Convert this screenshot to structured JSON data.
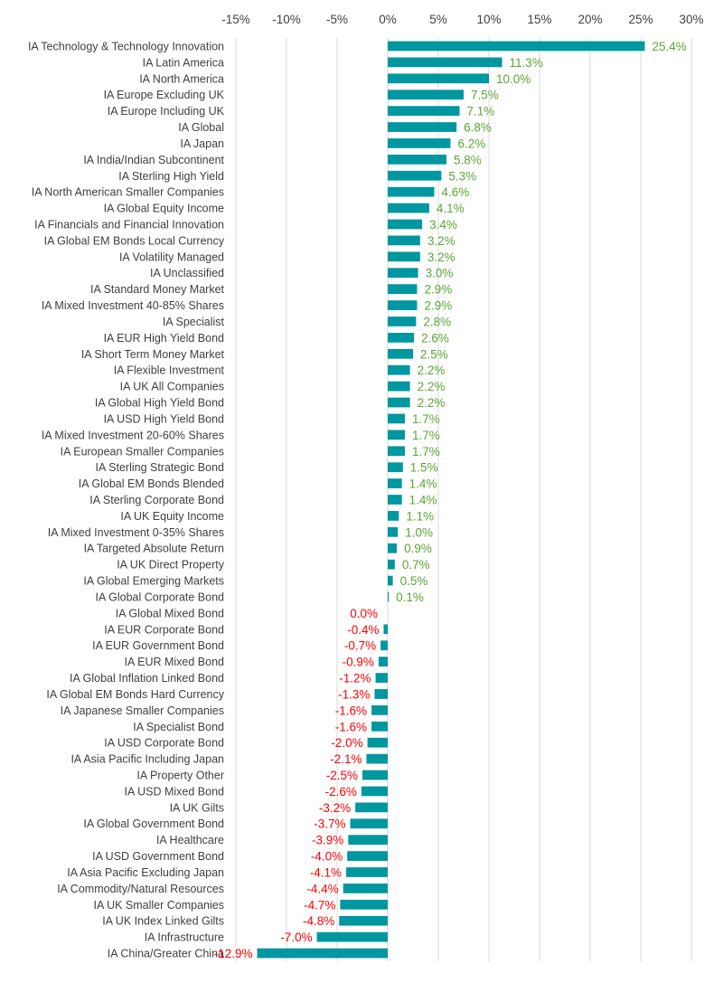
{
  "chart_data": {
    "type": "bar",
    "orientation": "horizontal",
    "title": "",
    "xlabel": "",
    "ylabel": "",
    "xlim": [
      -15,
      30
    ],
    "x_ticks": [
      -15,
      -10,
      -5,
      0,
      5,
      10,
      15,
      20,
      25,
      30
    ],
    "x_tick_labels": [
      "-15%",
      "-10%",
      "-5%",
      "0%",
      "5%",
      "10%",
      "15%",
      "20%",
      "25%",
      "30%"
    ],
    "x_axis_position": "top",
    "grid": true,
    "legend": "none",
    "colors": {
      "bar": "#0097A0",
      "positive_label": "#5BA535",
      "negative_label": "#FF0000",
      "grid": "#D9D9D9",
      "text": "#404040"
    },
    "categories": [
      "IA Technology & Technology Innovation",
      "IA Latin America",
      "IA North America",
      "IA Europe Excluding UK",
      "IA Europe Including UK",
      "IA Global",
      "IA Japan",
      "IA India/Indian Subcontinent",
      "IA Sterling High Yield",
      "IA North American Smaller Companies",
      "IA Global Equity Income",
      "IA Financials and Financial Innovation",
      "IA Global EM Bonds Local Currency",
      "IA Volatility Managed",
      "IA Unclassified",
      "IA Standard Money Market",
      "IA Mixed Investment 40-85% Shares",
      "IA Specialist",
      "IA EUR High Yield Bond",
      "IA Short Term Money Market",
      "IA Flexible Investment",
      "IA UK All Companies",
      "IA Global High Yield Bond",
      "IA USD High Yield Bond",
      "IA Mixed Investment 20-60% Shares",
      "IA European Smaller Companies",
      "IA Sterling Strategic Bond",
      "IA Global EM Bonds Blended",
      "IA Sterling Corporate Bond",
      "IA UK Equity Income",
      "IA Mixed Investment 0-35% Shares",
      "IA Targeted Absolute Return",
      "IA UK Direct Property",
      "IA Global Emerging Markets",
      "IA Global Corporate Bond",
      "IA Global Mixed Bond",
      "IA EUR Corporate Bond",
      "IA EUR Government Bond",
      "IA EUR Mixed Bond",
      "IA Global Inflation Linked Bond",
      "IA Global EM Bonds Hard Currency",
      "IA Japanese Smaller Companies",
      "IA Specialist Bond",
      "IA USD Corporate Bond",
      "IA Asia Pacific Including Japan",
      "IA Property Other",
      "IA USD Mixed Bond",
      "IA UK Gilts",
      "IA Global Government Bond",
      "IA Healthcare",
      "IA USD Government Bond",
      "IA Asia Pacific Excluding Japan",
      "IA Commodity/Natural Resources",
      "IA UK Smaller Companies",
      "IA UK Index Linked Gilts",
      "IA Infrastructure",
      "IA China/Greater China"
    ],
    "values": [
      25.4,
      11.3,
      10.0,
      7.5,
      7.1,
      6.8,
      6.2,
      5.8,
      5.3,
      4.6,
      4.1,
      3.4,
      3.2,
      3.2,
      3.0,
      2.9,
      2.9,
      2.8,
      2.6,
      2.5,
      2.2,
      2.2,
      2.2,
      1.7,
      1.7,
      1.7,
      1.5,
      1.4,
      1.4,
      1.1,
      1.0,
      0.9,
      0.7,
      0.5,
      0.1,
      0.0,
      -0.4,
      -0.7,
      -0.9,
      -1.2,
      -1.3,
      -1.6,
      -1.6,
      -2.0,
      -2.1,
      -2.5,
      -2.6,
      -3.2,
      -3.7,
      -3.9,
      -4.0,
      -4.1,
      -4.4,
      -4.7,
      -4.8,
      -7.0,
      -12.9
    ],
    "data_labels": [
      "25.4%",
      "11.3%",
      "10.0%",
      "7.5%",
      "7.1%",
      "6.8%",
      "6.2%",
      "5.8%",
      "5.3%",
      "4.6%",
      "4.1%",
      "3.4%",
      "3.2%",
      "3.2%",
      "3.0%",
      "2.9%",
      "2.9%",
      "2.8%",
      "2.6%",
      "2.5%",
      "2.2%",
      "2.2%",
      "2.2%",
      "1.7%",
      "1.7%",
      "1.7%",
      "1.5%",
      "1.4%",
      "1.4%",
      "1.1%",
      "1.0%",
      "0.9%",
      "0.7%",
      "0.5%",
      "0.1%",
      "0.0%",
      "-0.4%",
      "-0.7%",
      "-0.9%",
      "-1.2%",
      "-1.3%",
      "-1.6%",
      "-1.6%",
      "-2.0%",
      "-2.1%",
      "-2.5%",
      "-2.6%",
      "-3.2%",
      "-3.7%",
      "-3.9%",
      "-4.0%",
      "-4.1%",
      "-4.4%",
      "-4.7%",
      "-4.8%",
      "-7.0%",
      "-12.9%"
    ]
  }
}
